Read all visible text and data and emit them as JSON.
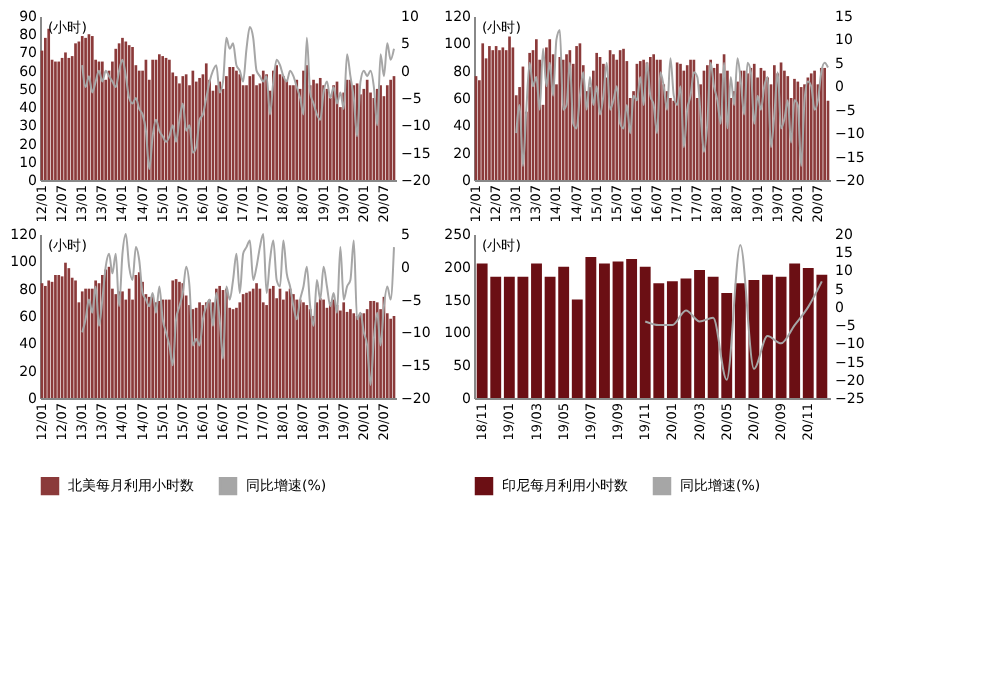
{
  "chart_data": [
    {
      "type": "bar",
      "annotations": [
        "(小时)"
      ],
      "legend": false,
      "categories": [
        "12/01",
        null,
        null,
        null,
        null,
        null,
        "12/07",
        null,
        null,
        null,
        null,
        null,
        "13/01",
        null,
        null,
        null,
        null,
        null,
        "13/07",
        null,
        null,
        null,
        null,
        null,
        "14/01",
        null,
        null,
        null,
        null,
        null,
        "14/07",
        null,
        null,
        null,
        null,
        null,
        "15/01",
        null,
        null,
        null,
        null,
        null,
        "15/07",
        null,
        null,
        null,
        null,
        null,
        "16/01",
        null,
        null,
        null,
        null,
        null,
        "16/07",
        null,
        null,
        null,
        null,
        null,
        "17/01",
        null,
        null,
        null,
        null,
        null,
        "17/07",
        null,
        null,
        null,
        null,
        null,
        "18/01",
        null,
        null,
        null,
        null,
        null,
        "18/07",
        null,
        null,
        null,
        null,
        null,
        "19/01",
        null,
        null,
        null,
        null,
        null,
        "19/07",
        null,
        null,
        null,
        null,
        null,
        "20/01",
        null,
        null,
        null,
        null,
        null,
        "20/07",
        null,
        null,
        null
      ],
      "ylim": [
        0,
        90
      ],
      "yticks": [
        0,
        10,
        20,
        30,
        40,
        50,
        60,
        70,
        80,
        90
      ],
      "y2lim": [
        -20,
        10
      ],
      "y2ticks": [
        -20,
        -15,
        -10,
        -5,
        0,
        5,
        10
      ],
      "series": [
        {
          "type": "bar",
          "color": "#8b3a3a",
          "values": [
            71,
            78,
            83,
            66,
            65,
            65,
            67,
            70,
            67,
            68,
            75,
            76,
            79,
            78,
            80,
            79,
            66,
            65,
            65,
            55,
            60,
            65,
            72,
            75,
            78,
            76,
            74,
            73,
            63,
            60,
            60,
            66,
            55,
            66,
            66,
            69,
            68,
            67,
            66,
            59,
            57,
            53,
            57,
            58,
            52,
            60,
            54,
            56,
            58,
            64,
            55,
            49,
            52,
            54,
            50,
            57,
            62,
            62,
            60,
            58,
            52,
            52,
            57,
            58,
            52,
            53,
            60,
            58,
            49,
            60,
            63,
            58,
            57,
            55,
            52,
            52,
            55,
            50,
            60,
            63,
            52,
            55,
            53,
            56,
            52,
            50,
            45,
            52,
            54,
            40,
            48,
            55,
            55,
            52,
            53,
            47,
            50,
            55,
            48,
            45,
            50,
            52,
            46,
            52,
            55,
            57
          ]
        },
        {
          "type": "line",
          "axis": "y2",
          "color": "#a6a6a6",
          "values": [
            null,
            null,
            null,
            null,
            null,
            null,
            null,
            null,
            null,
            null,
            null,
            null,
            1,
            -3,
            -1,
            -4,
            -2,
            0,
            -2,
            0,
            -1,
            -2,
            -3,
            0,
            2,
            -1,
            -5,
            -6,
            -5,
            -7,
            -8,
            -11,
            -18,
            -12,
            -9,
            -11,
            -12,
            -13,
            -12,
            -10,
            -13,
            -9,
            -6,
            -11,
            -10,
            -15,
            -14,
            -9,
            -8,
            -5,
            -2,
            0,
            1,
            -4,
            -2,
            6,
            4,
            5,
            1,
            0,
            -2,
            4,
            8,
            6,
            0,
            -1,
            -2,
            -1,
            -8,
            -2,
            2,
            1,
            -1,
            -2,
            0,
            -1,
            -3,
            -5,
            -8,
            6,
            -4,
            -6,
            -8,
            -9,
            -4,
            -2,
            -5,
            -3,
            -6,
            -4,
            -7,
            3,
            -1,
            -5,
            -12,
            -2,
            0,
            -1,
            0,
            -3,
            -10,
            3,
            -1,
            5,
            2,
            4
          ]
        }
      ]
    },
    {
      "type": "bar",
      "annotations": [
        "(小时)"
      ],
      "legend": false,
      "categories": [
        "12/01",
        null,
        null,
        null,
        null,
        null,
        "12/07",
        null,
        null,
        null,
        null,
        null,
        "13/01",
        null,
        null,
        null,
        null,
        null,
        "13/07",
        null,
        null,
        null,
        null,
        null,
        "14/01",
        null,
        null,
        null,
        null,
        null,
        "14/07",
        null,
        null,
        null,
        null,
        null,
        "15/01",
        null,
        null,
        null,
        null,
        null,
        "15/07",
        null,
        null,
        null,
        null,
        null,
        "16/01",
        null,
        null,
        null,
        null,
        null,
        "16/07",
        null,
        null,
        null,
        null,
        null,
        "17/01",
        null,
        null,
        null,
        null,
        null,
        "17/07",
        null,
        null,
        null,
        null,
        null,
        "18/01",
        null,
        null,
        null,
        null,
        null,
        "18/07",
        null,
        null,
        null,
        null,
        null,
        "19/01",
        null,
        null,
        null,
        null,
        null,
        "19/07",
        null,
        null,
        null,
        null,
        null,
        "20/01",
        null,
        null,
        null,
        null,
        null,
        "20/07",
        null,
        null,
        null
      ],
      "ylim": [
        0,
        120
      ],
      "yticks": [
        0,
        20,
        40,
        60,
        80,
        100,
        120
      ],
      "y2lim": [
        -20,
        15
      ],
      "y2ticks": [
        -20,
        -15,
        -10,
        -5,
        0,
        5,
        10,
        15
      ],
      "series": [
        {
          "type": "bar",
          "color": "#8b3a3a",
          "values": [
            76,
            73,
            100,
            89,
            98,
            95,
            98,
            95,
            97,
            95,
            105,
            97,
            62,
            68,
            83,
            50,
            93,
            95,
            103,
            88,
            55,
            97,
            103,
            92,
            70,
            90,
            88,
            92,
            95,
            85,
            98,
            100,
            84,
            65,
            68,
            80,
            93,
            90,
            85,
            75,
            95,
            92,
            88,
            95,
            96,
            87,
            60,
            65,
            85,
            87,
            88,
            86,
            90,
            92,
            88,
            88,
            70,
            65,
            60,
            58,
            86,
            85,
            80,
            84,
            88,
            88,
            60,
            70,
            80,
            84,
            88,
            82,
            85,
            78,
            92,
            80,
            60,
            65,
            72,
            80,
            80,
            78,
            82,
            85,
            75,
            82,
            80,
            75,
            70,
            84,
            78,
            86,
            80,
            76,
            60,
            74,
            72,
            68,
            70,
            75,
            78,
            80,
            70,
            82,
            82,
            58
          ]
        },
        {
          "type": "line",
          "axis": "y2",
          "color": "#a6a6a6",
          "values": [
            null,
            null,
            null,
            null,
            null,
            null,
            null,
            null,
            null,
            null,
            null,
            null,
            -10,
            -4,
            -17,
            -5,
            5,
            0,
            2,
            -5,
            8,
            0,
            5,
            -2,
            10,
            12,
            -5,
            -4,
            5,
            -8,
            -9,
            -2,
            3,
            -5,
            2,
            -4,
            0,
            -6,
            -2,
            5,
            -5,
            -3,
            0,
            -8,
            -9,
            -4,
            -10,
            -2,
            -3,
            2,
            -4,
            5,
            -2,
            -4,
            -10,
            3,
            0,
            -5,
            6,
            -2,
            -4,
            0,
            -13,
            -5,
            -2,
            3,
            2,
            -6,
            -14,
            -8,
            5,
            0,
            -3,
            -8,
            5,
            -9,
            2,
            -4,
            6,
            1,
            -6,
            5,
            3,
            -8,
            -2,
            -5,
            0,
            2,
            -13,
            -6,
            3,
            -9,
            -7,
            -3,
            -12,
            -3,
            -4,
            -17,
            -3,
            1,
            0,
            -5,
            -3,
            3,
            5,
            4
          ]
        }
      ]
    },
    {
      "type": "bar",
      "annotations": [
        "(小时)"
      ],
      "legend": "bottom",
      "categories": [
        "12/01",
        null,
        null,
        null,
        null,
        null,
        "12/07",
        null,
        null,
        null,
        null,
        null,
        "13/01",
        null,
        null,
        null,
        null,
        null,
        "13/07",
        null,
        null,
        null,
        null,
        null,
        "14/01",
        null,
        null,
        null,
        null,
        null,
        "14/07",
        null,
        null,
        null,
        null,
        null,
        "15/01",
        null,
        null,
        null,
        null,
        null,
        "15/07",
        null,
        null,
        null,
        null,
        null,
        "16/01",
        null,
        null,
        null,
        null,
        null,
        "16/07",
        null,
        null,
        null,
        null,
        null,
        "17/01",
        null,
        null,
        null,
        null,
        null,
        "17/07",
        null,
        null,
        null,
        null,
        null,
        "18/01",
        null,
        null,
        null,
        null,
        null,
        "18/07",
        null,
        null,
        null,
        null,
        null,
        "19/01",
        null,
        null,
        null,
        null,
        null,
        "19/07",
        null,
        null,
        null,
        null,
        null,
        "20/01",
        null,
        null,
        null,
        null,
        null,
        "20/07",
        null,
        null,
        null
      ],
      "ylim": [
        0,
        120
      ],
      "yticks": [
        0,
        20,
        40,
        60,
        80,
        100,
        120
      ],
      "y2lim": [
        -20,
        5
      ],
      "y2ticks": [
        -20,
        -15,
        -10,
        -5,
        0,
        5
      ],
      "series": [
        {
          "type": "bar",
          "name": "北美每月利用小时数",
          "color": "#8b3a3a",
          "values": [
            84,
            82,
            86,
            85,
            90,
            90,
            89,
            99,
            95,
            88,
            86,
            70,
            78,
            80,
            80,
            80,
            86,
            84,
            90,
            94,
            96,
            80,
            76,
            78,
            78,
            72,
            80,
            72,
            90,
            92,
            85,
            76,
            74,
            75,
            70,
            71,
            72,
            72,
            72,
            86,
            87,
            85,
            84,
            75,
            68,
            65,
            66,
            70,
            68,
            70,
            72,
            70,
            80,
            82,
            79,
            80,
            66,
            65,
            66,
            70,
            76,
            77,
            78,
            80,
            84,
            80,
            70,
            68,
            80,
            82,
            73,
            80,
            72,
            78,
            80,
            76,
            72,
            72,
            70,
            68,
            65,
            60,
            70,
            73,
            72,
            66,
            70,
            72,
            68,
            64,
            70,
            63,
            65,
            62,
            60,
            62,
            62,
            65,
            71,
            71,
            70,
            65,
            74,
            62,
            58,
            60
          ]
        },
        {
          "type": "line",
          "axis": "y2",
          "name": "同比增速(%)",
          "color": "#a6a6a6",
          "values": [
            null,
            null,
            null,
            null,
            null,
            null,
            null,
            null,
            null,
            null,
            null,
            null,
            -10,
            -8,
            -5,
            -7,
            -3,
            -9,
            -5,
            0,
            2,
            -1,
            2,
            -6,
            2,
            5,
            0,
            -2,
            3,
            1,
            -4,
            -5,
            -6,
            -4,
            -7,
            -3,
            -8,
            -10,
            -12,
            -15,
            -8,
            -6,
            -4,
            0,
            -3,
            -12,
            -11,
            -12,
            -8,
            -6,
            -5,
            -9,
            -4,
            -8,
            -14,
            -3,
            -5,
            -2,
            2,
            -4,
            2,
            3,
            4,
            -2,
            0,
            3,
            5,
            -4,
            1,
            4,
            -2,
            -3,
            4,
            -1,
            -3,
            -6,
            -8,
            -5,
            -3,
            0,
            -6,
            -9,
            -2,
            -5,
            0,
            -3,
            -6,
            -4,
            -7,
            3,
            -5,
            -3,
            -2,
            4,
            -8,
            -7,
            -10,
            -12,
            -18,
            -11,
            -7,
            -12,
            -6,
            -3,
            -5,
            3
          ]
        }
      ]
    },
    {
      "type": "bar",
      "annotations": [
        "(小时)"
      ],
      "legend": "bottom",
      "categories": [
        "18/11",
        null,
        "19/01",
        null,
        "19/03",
        null,
        "19/05",
        null,
        "19/07",
        null,
        "19/09",
        null,
        "19/11",
        null,
        "20/01",
        null,
        "20/03",
        null,
        "20/05",
        null,
        "20/07",
        null,
        "20/09",
        null,
        "20/11",
        null
      ],
      "ylim": [
        0,
        250
      ],
      "yticks": [
        0,
        50,
        100,
        150,
        200,
        250
      ],
      "y2lim": [
        -25,
        20
      ],
      "y2ticks": [
        -25,
        -20,
        -15,
        -10,
        -5,
        0,
        5,
        10,
        15,
        20
      ],
      "series": [
        {
          "type": "bar",
          "name": "印尼每月利用小时数",
          "color": "#6b0f14",
          "values": [
            205,
            185,
            185,
            185,
            205,
            185,
            200,
            150,
            215,
            205,
            208,
            212,
            200,
            175,
            178,
            182,
            195,
            185,
            160,
            175,
            180,
            188,
            185,
            205,
            198,
            188
          ]
        },
        {
          "type": "line",
          "axis": "y2",
          "name": "同比增速(%)",
          "color": "#a6a6a6",
          "values": [
            null,
            null,
            null,
            null,
            null,
            null,
            null,
            null,
            null,
            null,
            null,
            null,
            -4,
            -5,
            -5,
            -1,
            -4,
            -3,
            -20,
            17,
            -17,
            -8,
            -10,
            -5,
            0,
            7
          ]
        }
      ]
    }
  ]
}
